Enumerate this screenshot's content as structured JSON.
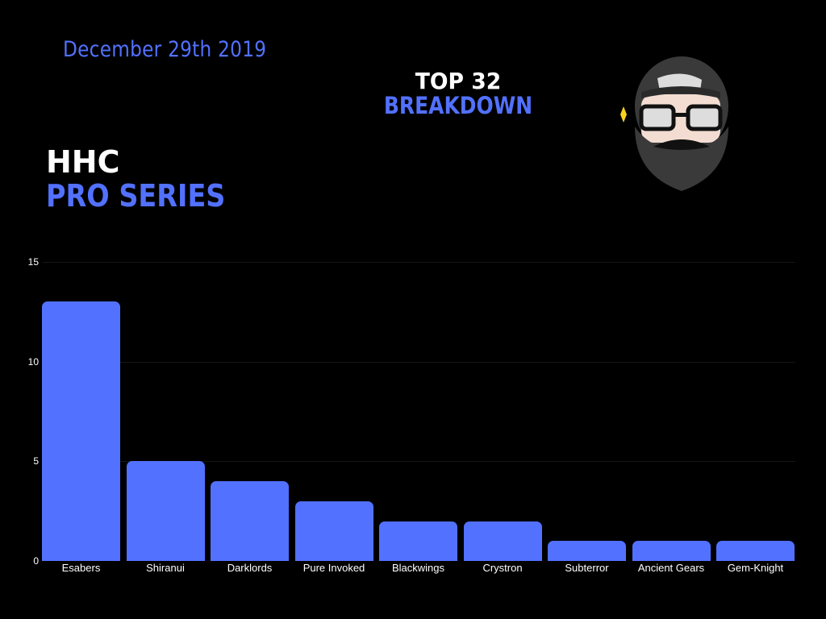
{
  "header": {
    "date": "December 29th 2019",
    "top_line1": "TOP 32",
    "top_line2": "BREAKDOWN",
    "title_line1": "HHC",
    "title_line2": "PRO SERIES"
  },
  "avatar": {
    "icon": "bearded-man-cap-glasses-icon"
  },
  "colors": {
    "accent": "#5271ff",
    "background": "#000000",
    "text": "#ffffff"
  },
  "chart_data": {
    "type": "bar",
    "title": "HHC Pro Series Top 32 Breakdown",
    "xlabel": "",
    "ylabel": "",
    "categories": [
      "Esabers",
      "Shiranui",
      "Darklords",
      "Pure Invoked",
      "Blackwings",
      "Crystron",
      "Subterror",
      "Ancient Gears",
      "Gem-Knight"
    ],
    "values": [
      13,
      5,
      4,
      3,
      2,
      2,
      1,
      1,
      1
    ],
    "ylim": [
      0,
      15
    ],
    "yticks": [
      0,
      5,
      10,
      15
    ],
    "grid": true,
    "legend": null,
    "bar_color": "#5271ff"
  }
}
